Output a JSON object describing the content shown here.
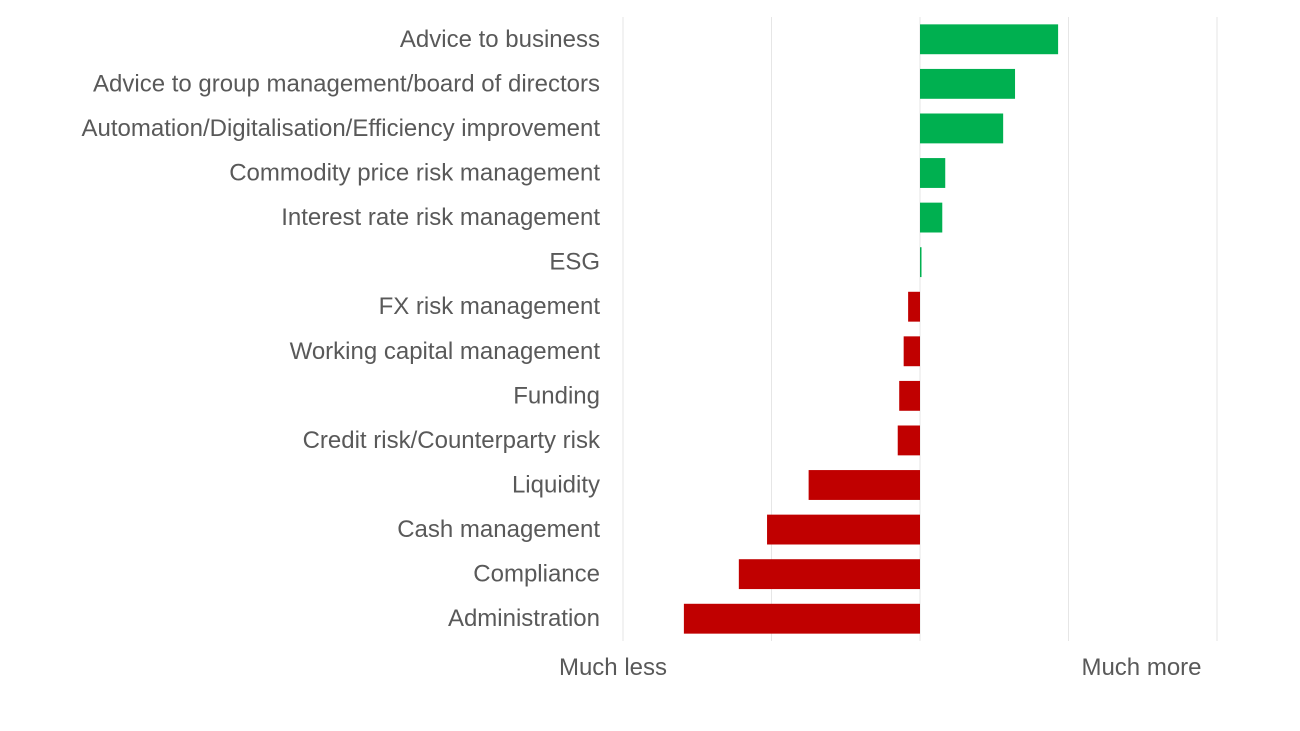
{
  "chart_data": {
    "type": "bar",
    "orientation": "horizontal",
    "categories": [
      "Advice to business",
      "Advice to group management/board of directors",
      "Automation/Digitalisation/Efficiency improvement",
      "Commodity price risk management",
      "Interest rate risk management",
      "ESG",
      "FX risk management",
      "Working capital management",
      "Funding",
      "Credit risk/Counterparty risk",
      "Liquidity",
      "Cash management",
      "Compliance",
      "Administration"
    ],
    "values": [
      0.93,
      0.64,
      0.56,
      0.17,
      0.15,
      0.01,
      -0.08,
      -0.11,
      -0.14,
      -0.15,
      -0.75,
      -1.03,
      -1.22,
      -1.59
    ],
    "xlim": [
      -2,
      2
    ],
    "x_tick_labels": {
      "min": "Much less",
      "max": "Much more"
    },
    "colors": {
      "positive": "#00b050",
      "negative": "#c00000",
      "text": "#595959",
      "grid": "#e6e6e6"
    },
    "grid": true,
    "title": "",
    "xlabel": "",
    "ylabel": ""
  }
}
